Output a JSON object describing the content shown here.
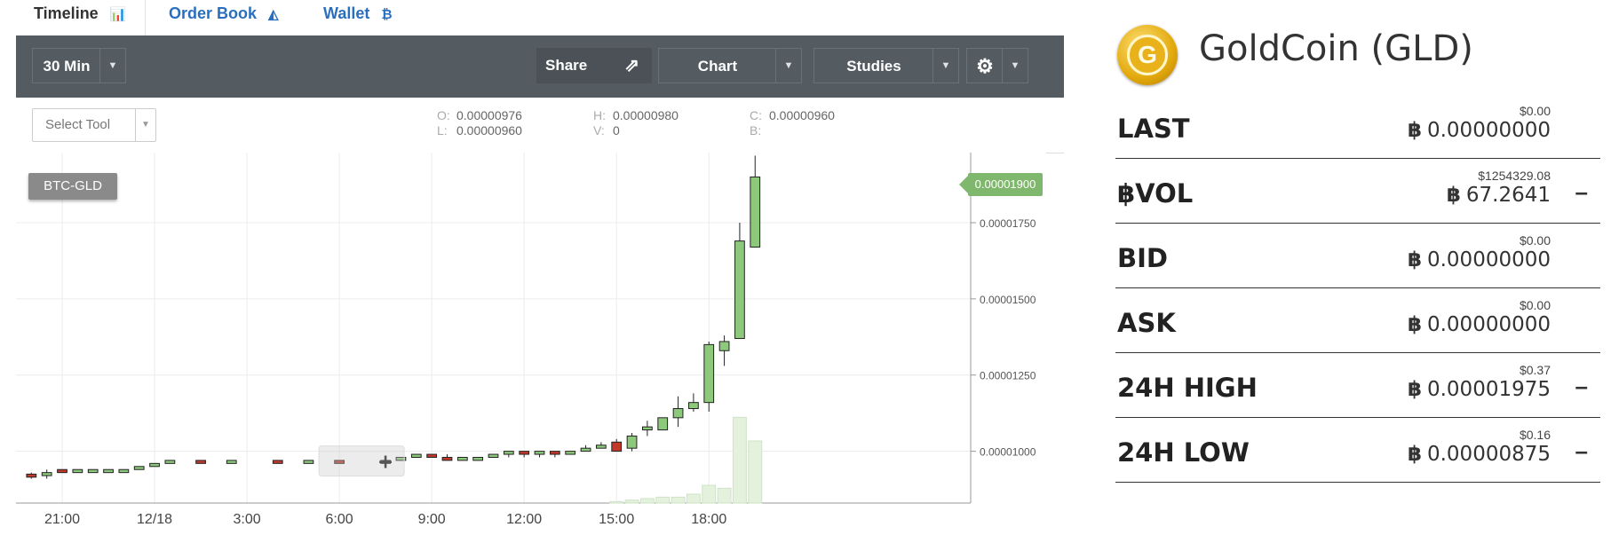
{
  "tabs": [
    {
      "label": "Timeline",
      "icon": "bar-chart-icon",
      "glyph": "📊"
    },
    {
      "label": "Order Book",
      "icon": "area-chart-icon",
      "glyph": "◭"
    },
    {
      "label": "Wallet",
      "icon": "bitcoin-icon",
      "glyph": "₿"
    }
  ],
  "toolbar": {
    "interval": "30 Min",
    "share_label": "Share",
    "chart_label": "Chart",
    "studies_label": "Studies",
    "dropdown_glyph": "▼"
  },
  "infobar": {
    "select_tool_placeholder": "Select Tool",
    "ohlc": [
      {
        "k": "O:",
        "v": "0.00000976"
      },
      {
        "k": "L:",
        "v": "0.00000960"
      },
      {
        "k": "H:",
        "v": "0.00000980"
      },
      {
        "k": "V:",
        "v": "0"
      },
      {
        "k": "C:",
        "v": "0.00000960"
      },
      {
        "k": "B:",
        "v": ""
      }
    ]
  },
  "pair_label": "BTC-GLD",
  "last_price_tag": "0.00001900",
  "chart_data": {
    "type": "candlestick",
    "x_tick_labels": [
      "21:00",
      "12/18",
      "3:00",
      "6:00",
      "9:00",
      "12:00",
      "15:00",
      "18:00"
    ],
    "y_tick_labels": [
      "0.00001000",
      "0.00001250",
      "0.00001500",
      "0.00001750"
    ],
    "y_ticks": [
      1e-05,
      1.25e-05,
      1.5e-05,
      1.75e-05
    ],
    "ylim": [
      8.3e-06,
      1.98e-05
    ],
    "x_hours": [
      -4.5,
      26.5
    ],
    "grid": true,
    "candles": [
      {
        "t": -4,
        "o": 9.25e-06,
        "c": 9.15e-06,
        "h": 9.3e-06,
        "l": 9.1e-06
      },
      {
        "t": -3.5,
        "o": 9.2e-06,
        "c": 9.3e-06,
        "h": 9.4e-06,
        "l": 9.1e-06
      },
      {
        "t": -3,
        "o": 9.4e-06,
        "c": 9.3e-06,
        "h": 9.4e-06,
        "l": 9.3e-06
      },
      {
        "t": -2.5,
        "o": 9.3e-06,
        "c": 9.4e-06,
        "h": 9.4e-06,
        "l": 9.3e-06
      },
      {
        "t": -2,
        "o": 9.3e-06,
        "c": 9.4e-06,
        "h": 9.4e-06,
        "l": 9.3e-06
      },
      {
        "t": -1.5,
        "o": 9.3e-06,
        "c": 9.4e-06,
        "h": 9.4e-06,
        "l": 9.3e-06
      },
      {
        "t": -1,
        "o": 9.3e-06,
        "c": 9.4e-06,
        "h": 9.4e-06,
        "l": 9.3e-06
      },
      {
        "t": -0.5,
        "o": 9.4e-06,
        "c": 9.5e-06,
        "h": 9.5e-06,
        "l": 9.4e-06
      },
      {
        "t": 0,
        "o": 9.5e-06,
        "c": 9.6e-06,
        "h": 9.6e-06,
        "l": 9.5e-06
      },
      {
        "t": 0.5,
        "o": 9.6e-06,
        "c": 9.7e-06,
        "h": 9.7e-06,
        "l": 9.6e-06
      },
      {
        "t": 1.5,
        "o": 9.7e-06,
        "c": 9.6e-06,
        "h": 9.7e-06,
        "l": 9.6e-06
      },
      {
        "t": 2.5,
        "o": 9.6e-06,
        "c": 9.7e-06,
        "h": 9.7e-06,
        "l": 9.6e-06
      },
      {
        "t": 4,
        "o": 9.7e-06,
        "c": 9.6e-06,
        "h": 9.7e-06,
        "l": 9.6e-06
      },
      {
        "t": 5,
        "o": 9.6e-06,
        "c": 9.7e-06,
        "h": 9.7e-06,
        "l": 9.6e-06
      },
      {
        "t": 6,
        "o": 9.7e-06,
        "c": 9.6e-06,
        "h": 9.7e-06,
        "l": 9.6e-06
      },
      {
        "t": 7.5,
        "o": 9.6e-06,
        "c": 9.7e-06,
        "h": 9.7e-06,
        "l": 9.6e-06
      },
      {
        "t": 8,
        "o": 9.7e-06,
        "c": 9.8e-06,
        "h": 9.8e-06,
        "l": 9.7e-06
      },
      {
        "t": 8.5,
        "o": 9.8e-06,
        "c": 9.9e-06,
        "h": 9.9e-06,
        "l": 9.8e-06
      },
      {
        "t": 9,
        "o": 9.9e-06,
        "c": 9.8e-06,
        "h": 9.9e-06,
        "l": 9.8e-06
      },
      {
        "t": 9.5,
        "o": 9.8e-06,
        "c": 9.7e-06,
        "h": 9.9e-06,
        "l": 9.7e-06
      },
      {
        "t": 10,
        "o": 9.7e-06,
        "c": 9.8e-06,
        "h": 9.8e-06,
        "l": 9.7e-06
      },
      {
        "t": 10.5,
        "o": 9.7e-06,
        "c": 9.8e-06,
        "h": 9.8e-06,
        "l": 9.7e-06
      },
      {
        "t": 11,
        "o": 9.8e-06,
        "c": 9.9e-06,
        "h": 9.9e-06,
        "l": 9.8e-06
      },
      {
        "t": 11.5,
        "o": 9.9e-06,
        "c": 1e-05,
        "h": 1e-05,
        "l": 9.8e-06
      },
      {
        "t": 12,
        "o": 1e-05,
        "c": 9.9e-06,
        "h": 1e-05,
        "l": 9.8e-06
      },
      {
        "t": 12.5,
        "o": 9.9e-06,
        "c": 1e-05,
        "h": 1e-05,
        "l": 9.8e-06
      },
      {
        "t": 13,
        "o": 1e-05,
        "c": 9.9e-06,
        "h": 1e-05,
        "l": 9.8e-06
      },
      {
        "t": 13.5,
        "o": 9.9e-06,
        "c": 1e-05,
        "h": 1e-05,
        "l": 9.9e-06
      },
      {
        "t": 14,
        "o": 1e-05,
        "c": 1.01e-05,
        "h": 1.02e-05,
        "l": 1e-05
      },
      {
        "t": 14.5,
        "o": 1.01e-05,
        "c": 1.02e-05,
        "h": 1.03e-05,
        "l": 1.01e-05
      },
      {
        "t": 15,
        "o": 1.03e-05,
        "c": 1e-05,
        "h": 1.04e-05,
        "l": 1e-05
      },
      {
        "t": 15.5,
        "o": 1.01e-05,
        "c": 1.05e-05,
        "h": 1.06e-05,
        "l": 1e-05
      },
      {
        "t": 16,
        "o": 1.07e-05,
        "c": 1.08e-05,
        "h": 1.1e-05,
        "l": 1.05e-05
      },
      {
        "t": 16.5,
        "o": 1.07e-05,
        "c": 1.11e-05,
        "h": 1.11e-05,
        "l": 1.07e-05
      },
      {
        "t": 17,
        "o": 1.11e-05,
        "c": 1.14e-05,
        "h": 1.18e-05,
        "l": 1.08e-05
      },
      {
        "t": 17.5,
        "o": 1.14e-05,
        "c": 1.16e-05,
        "h": 1.19e-05,
        "l": 1.13e-05
      },
      {
        "t": 18,
        "o": 1.16e-05,
        "c": 1.35e-05,
        "h": 1.36e-05,
        "l": 1.13e-05
      },
      {
        "t": 18.5,
        "o": 1.33e-05,
        "c": 1.36e-05,
        "h": 1.38e-05,
        "l": 1.28e-05
      },
      {
        "t": 19,
        "o": 1.37e-05,
        "c": 1.69e-05,
        "h": 1.75e-05,
        "l": 1.37e-05
      },
      {
        "t": 19.5,
        "o": 1.67e-05,
        "c": 1.9e-05,
        "h": 1.97e-05,
        "l": 1.67e-05
      }
    ],
    "volume_ymax": 30,
    "volumes": [
      {
        "t": 15,
        "v": 0.5
      },
      {
        "t": 15.5,
        "v": 1
      },
      {
        "t": 16,
        "v": 1.5
      },
      {
        "t": 16.5,
        "v": 2
      },
      {
        "t": 17,
        "v": 2
      },
      {
        "t": 17.5,
        "v": 3
      },
      {
        "t": 18,
        "v": 6
      },
      {
        "t": 18.5,
        "v": 5
      },
      {
        "t": 19,
        "v": 29
      },
      {
        "t": 19.5,
        "v": 21
      }
    ]
  },
  "coin": {
    "title": "GoldCoin (GLD)",
    "logo_glyph": "G"
  },
  "stats": [
    {
      "name": "LAST",
      "usd": "$0.00",
      "btc_symbol": "฿",
      "btc": "0.00000000",
      "toggle": ""
    },
    {
      "name": "฿VOL",
      "usd": "$1254329.08",
      "btc_symbol": "฿",
      "btc": "67.2641",
      "toggle": "–"
    },
    {
      "name": "BID",
      "usd": "$0.00",
      "btc_symbol": "฿",
      "btc": "0.00000000",
      "toggle": ""
    },
    {
      "name": "ASK",
      "usd": "$0.00",
      "btc_symbol": "฿",
      "btc": "0.00000000",
      "toggle": ""
    },
    {
      "name": "24H HIGH",
      "usd": "$0.37",
      "btc_symbol": "฿",
      "btc": "0.00001975",
      "toggle": "–"
    },
    {
      "name": "24H LOW",
      "usd": "$0.16",
      "btc_symbol": "฿",
      "btc": "0.00000875",
      "toggle": "–"
    }
  ]
}
